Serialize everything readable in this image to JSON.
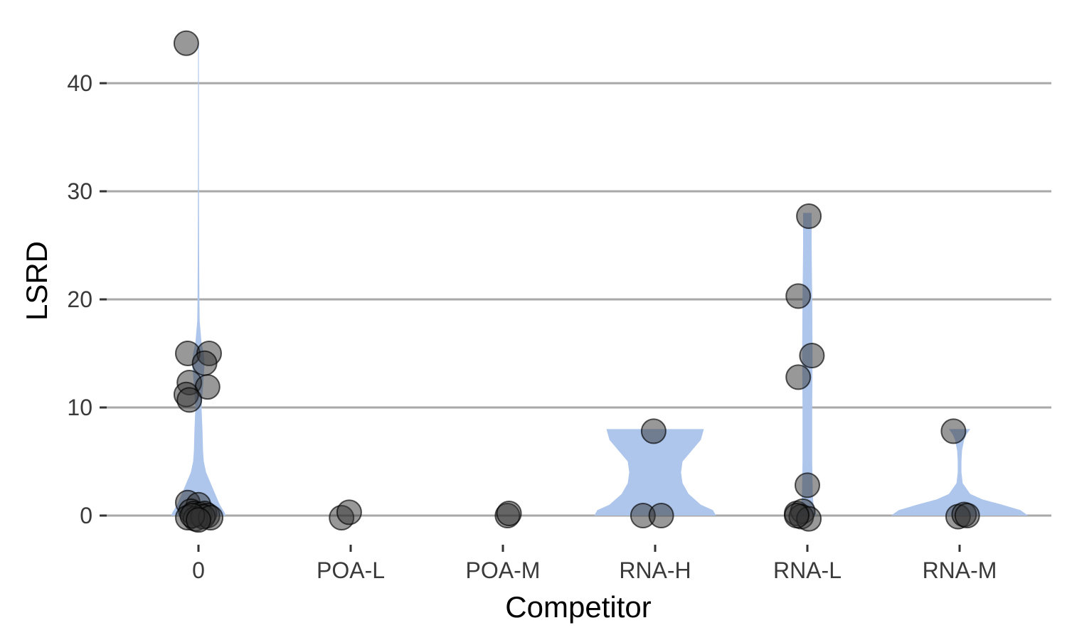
{
  "chart_data": {
    "type": "violin",
    "title": "",
    "xlabel": "Competitor",
    "ylabel": "LSRD",
    "categories": [
      "0",
      "POA-L",
      "POA-M",
      "RNA-H",
      "RNA-L",
      "RNA-M"
    ],
    "ylim": [
      -2.5,
      45.5
    ],
    "yticks": [
      0,
      10,
      20,
      30,
      40
    ],
    "grid": "horizontal",
    "legend": "none",
    "colors": {
      "violin": "#aec6ec",
      "point": "#3a3a3a",
      "grid": "#a8a8a8"
    },
    "violins": [
      {
        "category": "0",
        "profile": [
          [
            0,
            0.18
          ],
          [
            0.3,
            0.17
          ],
          [
            1,
            0.14
          ],
          [
            2,
            0.11
          ],
          [
            3,
            0.08
          ],
          [
            4,
            0.05
          ],
          [
            5,
            0.035
          ],
          [
            6,
            0.03
          ],
          [
            7,
            0.028
          ],
          [
            8,
            0.026
          ],
          [
            10,
            0.02
          ],
          [
            12,
            0.03
          ],
          [
            14,
            0.04
          ],
          [
            15,
            0.035
          ],
          [
            16,
            0.02
          ],
          [
            18,
            0.008
          ],
          [
            20,
            0.006
          ],
          [
            25,
            0.004
          ],
          [
            30,
            0.0035
          ],
          [
            35,
            0.003
          ],
          [
            40,
            0.003
          ],
          [
            43.7,
            0.0025
          ]
        ]
      },
      {
        "category": "RNA-H",
        "profile": [
          [
            0,
            0.4
          ],
          [
            0.5,
            0.38
          ],
          [
            1,
            0.3
          ],
          [
            2,
            0.22
          ],
          [
            3,
            0.18
          ],
          [
            4,
            0.17
          ],
          [
            5,
            0.18
          ],
          [
            6,
            0.24
          ],
          [
            7,
            0.3
          ],
          [
            8,
            0.32
          ]
        ]
      },
      {
        "category": "RNA-L",
        "profile": [
          [
            0,
            0.06
          ],
          [
            0.5,
            0.05
          ],
          [
            1,
            0.04
          ],
          [
            2,
            0.035
          ],
          [
            3,
            0.034
          ],
          [
            5,
            0.032
          ],
          [
            10,
            0.032
          ],
          [
            15,
            0.034
          ],
          [
            20,
            0.032
          ],
          [
            25,
            0.028
          ],
          [
            28,
            0.028
          ]
        ]
      },
      {
        "category": "RNA-M",
        "profile": [
          [
            0,
            0.45
          ],
          [
            0.5,
            0.4
          ],
          [
            1,
            0.28
          ],
          [
            1.5,
            0.15
          ],
          [
            2,
            0.07
          ],
          [
            3,
            0.02
          ],
          [
            4,
            0.012
          ],
          [
            5,
            0.012
          ],
          [
            6,
            0.016
          ],
          [
            7,
            0.03
          ],
          [
            7.5,
            0.045
          ],
          [
            8,
            0.07
          ]
        ]
      }
    ],
    "points": [
      {
        "category": "0",
        "dx": -0.08,
        "y": 43.7
      },
      {
        "category": "0",
        "dx": -0.07,
        "y": 15.0
      },
      {
        "category": "0",
        "dx": 0.07,
        "y": 15.0
      },
      {
        "category": "0",
        "dx": 0.04,
        "y": 14.1
      },
      {
        "category": "0",
        "dx": -0.06,
        "y": 12.3
      },
      {
        "category": "0",
        "dx": 0.06,
        "y": 11.9
      },
      {
        "category": "0",
        "dx": -0.08,
        "y": 11.2
      },
      {
        "category": "0",
        "dx": -0.06,
        "y": 10.7
      },
      {
        "category": "0",
        "dx": -0.07,
        "y": 1.2
      },
      {
        "category": "0",
        "dx": 0.0,
        "y": 1.0
      },
      {
        "category": "0",
        "dx": -0.05,
        "y": 0.4
      },
      {
        "category": "0",
        "dx": -0.03,
        "y": 0.2
      },
      {
        "category": "0",
        "dx": 0.01,
        "y": 0.1
      },
      {
        "category": "0",
        "dx": 0.04,
        "y": 0.2
      },
      {
        "category": "0",
        "dx": 0.06,
        "y": 0.0
      },
      {
        "category": "0",
        "dx": -0.07,
        "y": -0.2
      },
      {
        "category": "0",
        "dx": -0.02,
        "y": -0.3
      },
      {
        "category": "0",
        "dx": 0.03,
        "y": -0.1
      },
      {
        "category": "0",
        "dx": 0.08,
        "y": -0.2
      },
      {
        "category": "0",
        "dx": -0.04,
        "y": 0.0
      },
      {
        "category": "0",
        "dx": 0.0,
        "y": -0.4
      },
      {
        "category": "POA-L",
        "dx": -0.06,
        "y": -0.2
      },
      {
        "category": "POA-L",
        "dx": -0.01,
        "y": 0.3
      },
      {
        "category": "POA-M",
        "dx": 0.03,
        "y": 0.0
      },
      {
        "category": "POA-M",
        "dx": 0.04,
        "y": 0.2
      },
      {
        "category": "RNA-H",
        "dx": -0.08,
        "y": 0.0
      },
      {
        "category": "RNA-H",
        "dx": 0.04,
        "y": 0.0
      },
      {
        "category": "RNA-H",
        "dx": -0.01,
        "y": 7.8
      },
      {
        "category": "RNA-L",
        "dx": -0.06,
        "y": 20.3
      },
      {
        "category": "RNA-L",
        "dx": 0.01,
        "y": 27.7
      },
      {
        "category": "RNA-L",
        "dx": 0.03,
        "y": 14.8
      },
      {
        "category": "RNA-L",
        "dx": -0.06,
        "y": 12.8
      },
      {
        "category": "RNA-L",
        "dx": 0.0,
        "y": 2.8
      },
      {
        "category": "RNA-L",
        "dx": -0.07,
        "y": 0.2
      },
      {
        "category": "RNA-L",
        "dx": -0.03,
        "y": 0.4
      },
      {
        "category": "RNA-L",
        "dx": -0.04,
        "y": -0.1
      },
      {
        "category": "RNA-L",
        "dx": 0.01,
        "y": -0.3
      },
      {
        "category": "RNA-L",
        "dx": -0.07,
        "y": 0.0
      },
      {
        "category": "RNA-M",
        "dx": -0.04,
        "y": 7.8
      },
      {
        "category": "RNA-M",
        "dx": -0.01,
        "y": -0.1
      },
      {
        "category": "RNA-M",
        "dx": 0.03,
        "y": 0.1
      },
      {
        "category": "RNA-M",
        "dx": 0.05,
        "y": 0.0
      }
    ]
  }
}
